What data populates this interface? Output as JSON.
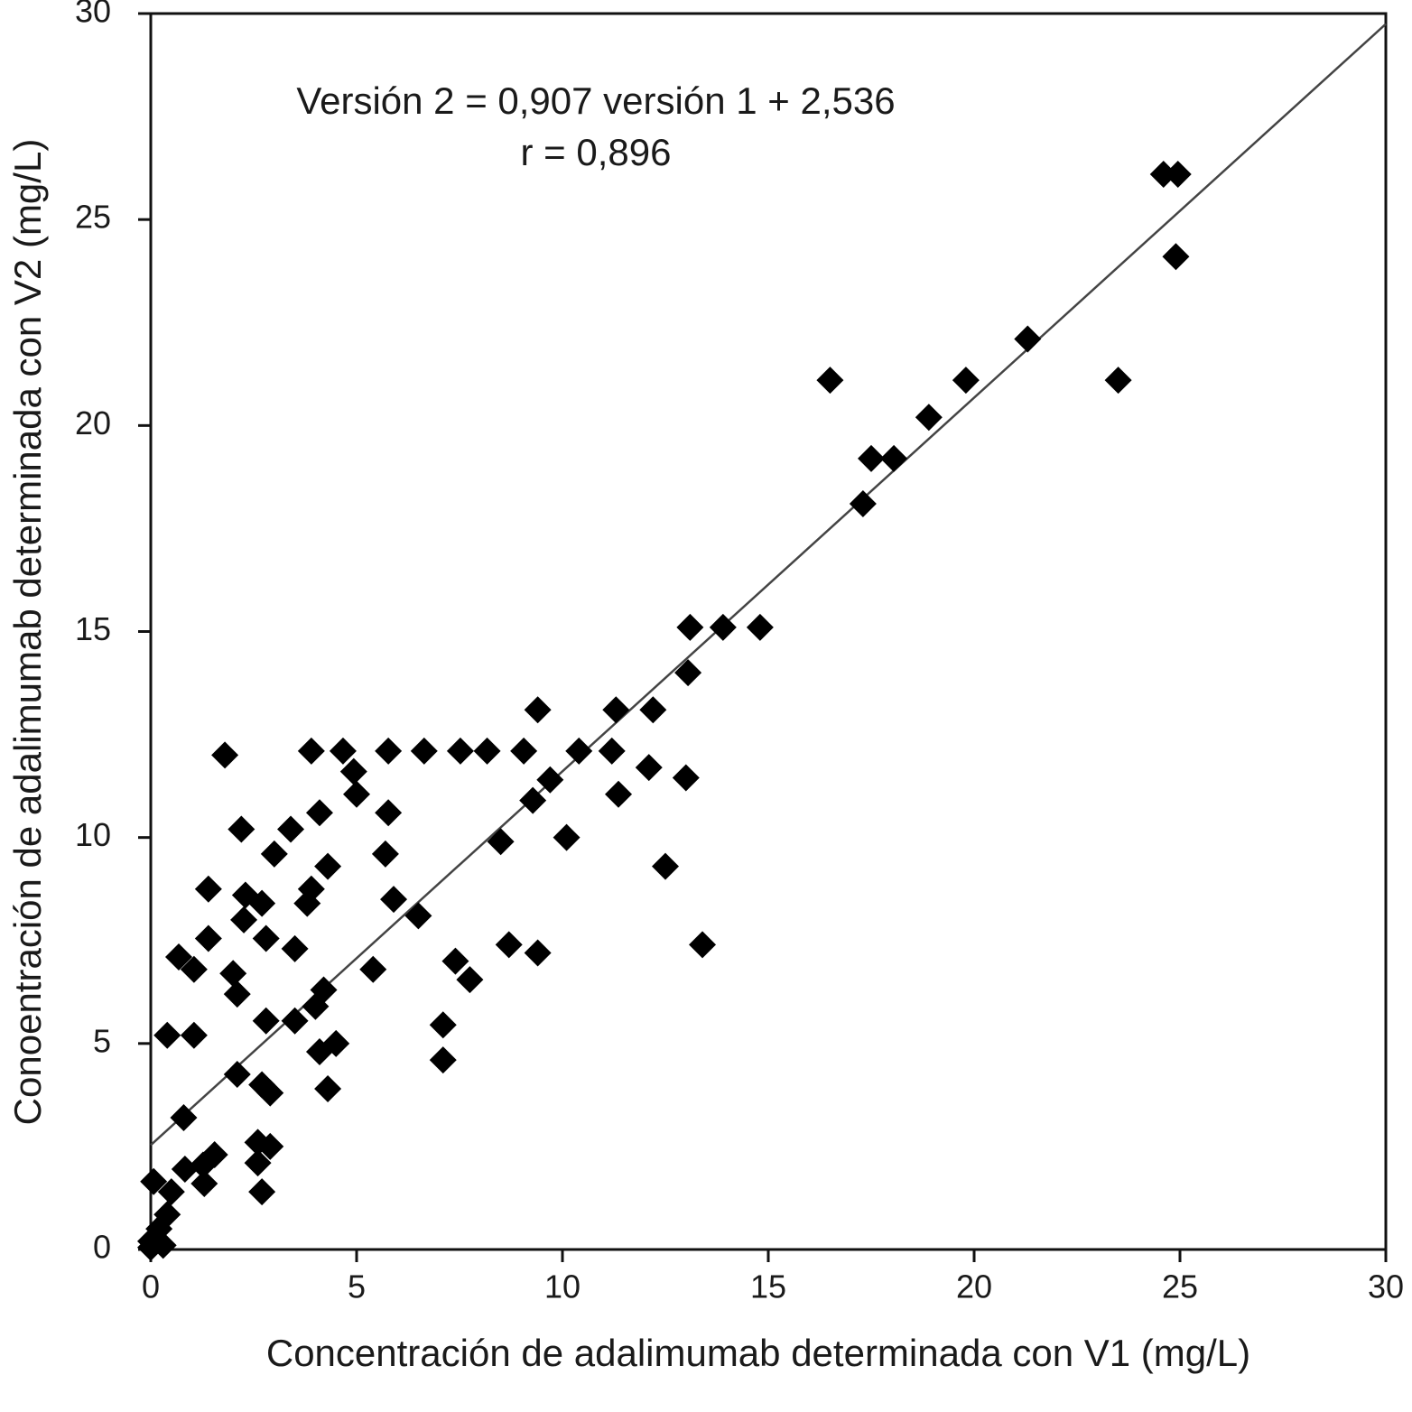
{
  "chart_data": {
    "type": "scatter",
    "xlabel": "Concentración de adalimumab determinada con V1 (mg/L)",
    "ylabel": "Conoentración de adalimumab determinada con V2 (mg/L)",
    "annotations": [
      "Versión 2 = 0,907 versión 1 + 2,536",
      "r = 0,896"
    ],
    "fit": {
      "slope": 0.907,
      "intercept": 2.536
    },
    "xlim": [
      0,
      30
    ],
    "ylim": [
      0,
      30
    ],
    "xticks": [
      0,
      5,
      10,
      15,
      20,
      25,
      30
    ],
    "yticks": [
      0,
      5,
      10,
      15,
      20,
      25,
      30
    ],
    "color": "#000000",
    "x": [
      24.6,
      24.95,
      24.9,
      21.3,
      23.5,
      16.5,
      19.8,
      18.9,
      17.5,
      18.05,
      17.3,
      13.1,
      13.9,
      14.8,
      13.05,
      9.4,
      12.2,
      11.3,
      1.8,
      3.9,
      4.67,
      5.77,
      6.64,
      7.52,
      8.17,
      9.06,
      10.4,
      11.2,
      12.1,
      13.0,
      4.93,
      5.0,
      9.28,
      9.7,
      11.36,
      10.1,
      8.5,
      12.5,
      13.4,
      2.2,
      3.4,
      4.1,
      3.0,
      4.3,
      3.9,
      3.8,
      1.4,
      2.3,
      2.7,
      2.26,
      2.8,
      3.5,
      1.4,
      0.68,
      1.05,
      2.0,
      2.1,
      5.77,
      5.7,
      5.9,
      6.5,
      5.4,
      4.2,
      4.0,
      3.5,
      2.8,
      0.4,
      1.05,
      4.1,
      4.5,
      4.3,
      7.1,
      7.1,
      7.4,
      7.75,
      8.7,
      9.4,
      2.1,
      2.7,
      2.9,
      0.8,
      2.6,
      2.9,
      2.6,
      2.7,
      1.55,
      1.27,
      0.83,
      1.3,
      0.5,
      0.07,
      0.4,
      0.2,
      0,
      0.3,
      0
    ],
    "y": [
      26.1,
      26.1,
      24.1,
      22.1,
      21.1,
      21.1,
      21.1,
      20.2,
      19.2,
      19.2,
      18.1,
      15.1,
      15.1,
      15.1,
      14.0,
      13.1,
      13.1,
      13.1,
      12.0,
      12.1,
      12.1,
      12.1,
      12.1,
      12.1,
      12.1,
      12.1,
      12.1,
      12.1,
      11.7,
      11.45,
      11.6,
      11.05,
      10.9,
      11.4,
      11.05,
      10.0,
      9.9,
      9.3,
      7.4,
      10.2,
      10.2,
      10.6,
      9.6,
      9.3,
      8.75,
      8.4,
      8.75,
      8.6,
      8.4,
      8.0,
      7.55,
      7.3,
      7.55,
      7.1,
      6.8,
      6.7,
      6.2,
      10.6,
      9.6,
      8.5,
      8.1,
      6.8,
      6.3,
      5.9,
      5.55,
      5.55,
      5.2,
      5.2,
      4.8,
      5.0,
      3.9,
      5.45,
      4.6,
      7.0,
      6.55,
      7.4,
      7.2,
      4.25,
      4.0,
      3.8,
      3.2,
      2.6,
      2.5,
      2.1,
      1.4,
      2.3,
      2.05,
      1.95,
      1.6,
      1.4,
      1.65,
      0.85,
      0.5,
      0.2,
      0.1,
      0.05
    ]
  }
}
